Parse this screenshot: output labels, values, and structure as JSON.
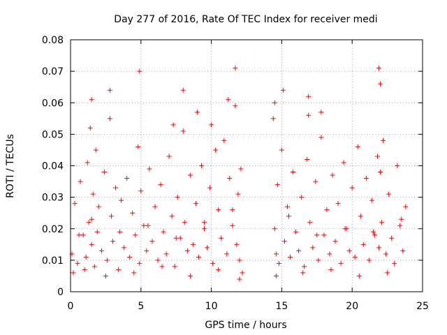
{
  "chart_data": {
    "type": "scatter",
    "title": "Day 277 of 2016, Rate Of TEC Index for receiver medi",
    "xlabel": "GPS time / hours",
    "ylabel": "ROTI / TECUs",
    "xlim": [
      0,
      25
    ],
    "ylim": [
      0,
      0.08
    ],
    "x_ticks": [
      0,
      5,
      10,
      15,
      20,
      25
    ],
    "x_tick_labels": [
      "0",
      "5",
      "10",
      "15",
      "20",
      "25"
    ],
    "y_ticks": [
      0,
      0.01,
      0.02,
      0.03,
      0.04,
      0.05,
      0.06,
      0.07,
      0.08
    ],
    "y_tick_labels": [
      "0",
      "0.01",
      "0.02",
      "0.03",
      "0.04",
      "0.05",
      "0.06",
      "0.07",
      "0.08"
    ],
    "grid": true,
    "marker": "+",
    "series": [
      {
        "name": "ROTI",
        "color": "#ff0000",
        "x": [
          0.1,
          0.3,
          0.5,
          0.7,
          0.9,
          1.1,
          1.2,
          1.3,
          1.4,
          1.5,
          1.6,
          1.7,
          1.8,
          1.9,
          2.0,
          2.2,
          2.4,
          2.6,
          2.8,
          2.9,
          3.0,
          3.2,
          3.4,
          3.6,
          3.8,
          4.0,
          4.2,
          4.4,
          4.6,
          4.8,
          4.9,
          5.0,
          5.2,
          5.4,
          5.6,
          5.8,
          6.0,
          6.2,
          6.4,
          6.6,
          6.8,
          7.0,
          7.2,
          7.4,
          7.6,
          7.8,
          8.0,
          8.1,
          8.3,
          8.5,
          8.7,
          8.9,
          9.1,
          9.3,
          9.5,
          9.7,
          9.9,
          10.1,
          10.3,
          10.5,
          10.7,
          10.9,
          11.1,
          11.3,
          11.5,
          11.7,
          11.8,
          11.9,
          12.0,
          12.1,
          12.2,
          14.4,
          14.5,
          14.6,
          14.7,
          14.8,
          15.0,
          15.2,
          15.4,
          15.6,
          15.8,
          16.0,
          16.2,
          16.4,
          16.6,
          16.8,
          16.9,
          17.0,
          17.2,
          17.4,
          17.6,
          17.8,
          18.0,
          18.2,
          18.4,
          18.6,
          18.8,
          19.0,
          19.2,
          19.4,
          19.6,
          19.8,
          20.0,
          20.2,
          20.4,
          20.6,
          20.8,
          21.0,
          21.2,
          21.4,
          21.6,
          21.8,
          21.9,
          22.0,
          22.1,
          22.2,
          22.4,
          22.6,
          22.8,
          23.0,
          23.2,
          23.4,
          23.6,
          23.8,
          0.2,
          0.6,
          1.0,
          1.5,
          2.5,
          3.5,
          4.5,
          5.5,
          6.5,
          7.5,
          8.5,
          9.5,
          10.5,
          11.5,
          12.0,
          14.6,
          15.5,
          16.5,
          17.5,
          18.5,
          19.5,
          20.5,
          21.5,
          22.5,
          23.5,
          2.8,
          4.9,
          8.0,
          11.7,
          14.5,
          15.1,
          16.9,
          17.8,
          21.9,
          22.0,
          10.0,
          11.2,
          9.0,
          7.3,
          1.5
        ],
        "y": [
          0.012,
          0.028,
          0.009,
          0.035,
          0.018,
          0.011,
          0.041,
          0.022,
          0.052,
          0.015,
          0.031,
          0.008,
          0.045,
          0.019,
          0.027,
          0.013,
          0.038,
          0.01,
          0.055,
          0.024,
          0.016,
          0.033,
          0.007,
          0.029,
          0.014,
          0.036,
          0.011,
          0.025,
          0.018,
          0.046,
          0.009,
          0.032,
          0.021,
          0.013,
          0.039,
          0.016,
          0.027,
          0.01,
          0.034,
          0.019,
          0.012,
          0.043,
          0.024,
          0.008,
          0.03,
          0.017,
          0.051,
          0.022,
          0.013,
          0.037,
          0.015,
          0.028,
          0.011,
          0.04,
          0.02,
          0.014,
          0.033,
          0.009,
          0.045,
          0.026,
          0.017,
          0.048,
          0.012,
          0.036,
          0.021,
          0.059,
          0.015,
          0.031,
          0.01,
          0.039,
          0.006,
          0.055,
          0.02,
          0.012,
          0.034,
          0.009,
          0.045,
          0.016,
          0.027,
          0.011,
          0.038,
          0.019,
          0.013,
          0.03,
          0.008,
          0.042,
          0.056,
          0.022,
          0.014,
          0.035,
          0.01,
          0.049,
          0.018,
          0.026,
          0.012,
          0.037,
          0.016,
          0.028,
          0.009,
          0.041,
          0.02,
          0.013,
          0.033,
          0.011,
          0.046,
          0.024,
          0.015,
          0.036,
          0.01,
          0.029,
          0.018,
          0.043,
          0.014,
          0.038,
          0.022,
          0.048,
          0.012,
          0.031,
          0.017,
          0.009,
          0.04,
          0.021,
          0.013,
          0.027,
          0.006,
          0.018,
          0.007,
          0.023,
          0.005,
          0.019,
          0.006,
          0.021,
          0.008,
          0.017,
          0.005,
          0.022,
          0.007,
          0.026,
          0.004,
          0.005,
          0.024,
          0.006,
          0.018,
          0.007,
          0.02,
          0.005,
          0.019,
          0.006,
          0.023,
          0.064,
          0.07,
          0.064,
          0.071,
          0.06,
          0.064,
          0.062,
          0.057,
          0.071,
          0.066,
          0.053,
          0.061,
          0.057,
          0.053,
          0.061
        ]
      }
    ]
  }
}
